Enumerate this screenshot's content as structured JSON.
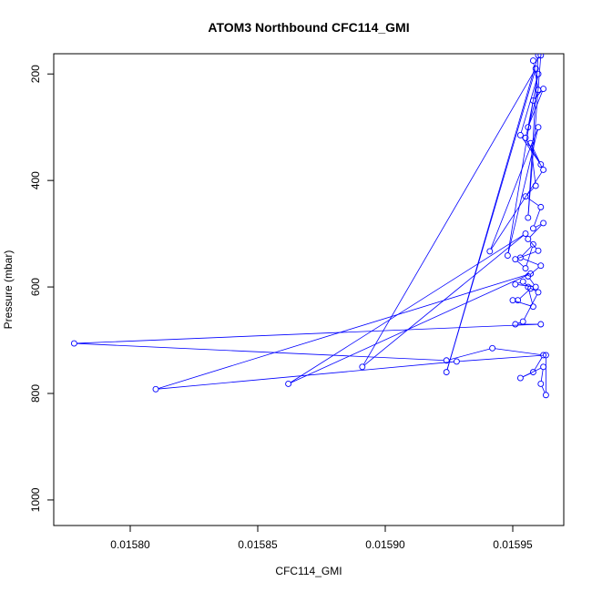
{
  "chart_data": {
    "type": "line",
    "title": "ATOM3 Northbound CFC114_GMI",
    "xlabel": "CFC114_GMI",
    "ylabel": "Pressure (mbar)",
    "xlim": [
      0.01577,
      0.01597
    ],
    "ylim": [
      1048,
      162
    ],
    "y_reversed": true,
    "grid": false,
    "line_color": "#0000ff",
    "x_ticks": [
      {
        "value": 0.0158,
        "label": "0.01580"
      },
      {
        "value": 0.01585,
        "label": "0.01585"
      },
      {
        "value": 0.0159,
        "label": "0.01590"
      },
      {
        "value": 0.01595,
        "label": "0.01595"
      }
    ],
    "y_ticks": [
      {
        "value": 200,
        "label": "200"
      },
      {
        "value": 400,
        "label": "400"
      },
      {
        "value": 600,
        "label": "600"
      },
      {
        "value": 800,
        "label": "800"
      },
      {
        "value": 1000,
        "label": "1000"
      }
    ],
    "series": [
      {
        "points": [
          [
            0.015958,
            175
          ],
          [
            0.01596,
            230
          ],
          [
            0.015955,
            320
          ],
          [
            0.015962,
            380
          ],
          [
            0.015941,
            533
          ],
          [
            0.01596,
            300
          ],
          [
            0.015948,
            541
          ],
          [
            0.015958,
            250
          ],
          [
            0.015962,
            228
          ],
          [
            0.015956,
            300
          ],
          [
            0.01596,
            200
          ],
          [
            0.015953,
            315
          ],
          [
            0.015961,
            370
          ],
          [
            0.015957,
            330
          ],
          [
            0.015959,
            410
          ],
          [
            0.015955,
            430
          ],
          [
            0.015961,
            450
          ],
          [
            0.015958,
            490
          ],
          [
            0.015962,
            480
          ],
          [
            0.015956,
            510
          ],
          [
            0.01596,
            532
          ],
          [
            0.015951,
            548
          ],
          [
            0.015955,
            565
          ],
          [
            0.015958,
            520
          ],
          [
            0.015953,
            545
          ],
          [
            0.015961,
            560
          ],
          [
            0.015956,
            580
          ],
          [
            0.015959,
            600
          ],
          [
            0.015951,
            595
          ],
          [
            0.015954,
            590
          ],
          [
            0.015957,
            603
          ],
          [
            0.015952,
            625
          ],
          [
            0.01595,
            625
          ],
          [
            0.015958,
            637
          ],
          [
            0.015956,
            600
          ],
          [
            0.01596,
            610
          ],
          [
            0.015954,
            665
          ],
          [
            0.015951,
            670
          ],
          [
            0.015961,
            670
          ],
          [
            0.015778,
            706
          ],
          [
            0.015924,
            738
          ],
          [
            0.015942,
            715
          ],
          [
            0.015962,
            728
          ],
          [
            0.015958,
            760
          ],
          [
            0.015953,
            771
          ],
          [
            0.015962,
            750
          ],
          [
            0.015961,
            782
          ],
          [
            0.015963,
            803
          ],
          [
            0.015963,
            728
          ],
          [
            0.015928,
            740
          ],
          [
            0.01581,
            792
          ],
          [
            0.015957,
            575
          ],
          [
            0.015862,
            782
          ],
          [
            0.015955,
            500
          ],
          [
            0.015891,
            750
          ],
          [
            0.015959,
            190
          ],
          [
            0.015924,
            760
          ],
          [
            0.01596,
            165
          ],
          [
            0.015956,
            470
          ],
          [
            0.015961,
            165
          ]
        ]
      }
    ]
  }
}
